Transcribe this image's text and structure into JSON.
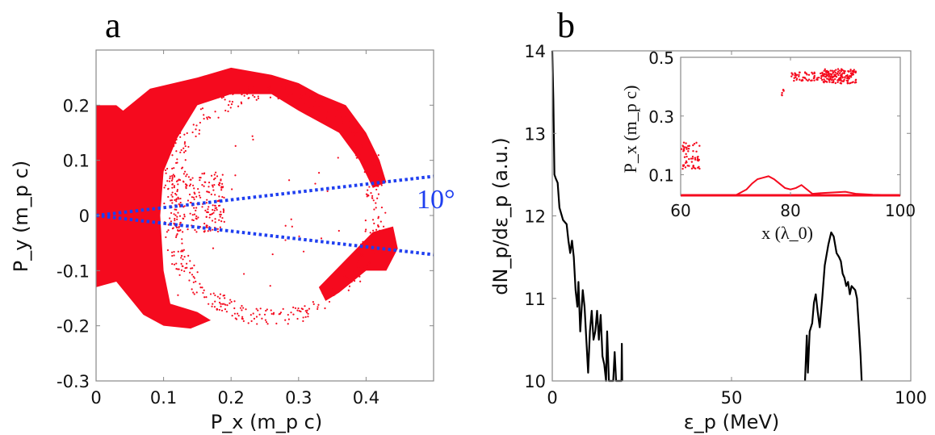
{
  "chart_data": [
    {
      "type": "scatter",
      "panel_label": "a",
      "xlabel": "P_x (m_p c)",
      "ylabel": "P_y (m_p c)",
      "xlim": [
        0,
        0.5
      ],
      "ylim": [
        -0.3,
        0.3
      ],
      "xticks": [
        "0",
        "0.1",
        "0.2",
        "0.3",
        "0.4"
      ],
      "yticks": [
        "0.2",
        "0.1",
        "0",
        "-0.1",
        "-0.2",
        "-0.3"
      ],
      "xtick_values": [
        0,
        0.1,
        0.2,
        0.3,
        0.4
      ],
      "ytick_values": [
        0.2,
        0.1,
        0,
        -0.1,
        -0.2,
        -0.3
      ],
      "point_color": "#f50a1e",
      "dense_regions": [
        {
          "points": [
            [
              0,
              0.2
            ],
            [
              0.03,
              0.2
            ],
            [
              0.04,
              0.19
            ],
            [
              0.08,
              0.23
            ],
            [
              0.15,
              0.25
            ],
            [
              0.2,
              0.268
            ],
            [
              0.26,
              0.255
            ],
            [
              0.3,
              0.24
            ],
            [
              0.33,
              0.22
            ],
            [
              0.37,
              0.2
            ],
            [
              0.4,
              0.15
            ],
            [
              0.42,
              0.1
            ],
            [
              0.43,
              0.06
            ],
            [
              0.41,
              0.05
            ],
            [
              0.39,
              0.1
            ],
            [
              0.36,
              0.15
            ],
            [
              0.3,
              0.19
            ],
            [
              0.26,
              0.22
            ],
            [
              0.2,
              0.22
            ],
            [
              0.15,
              0.2
            ],
            [
              0.12,
              0.14
            ],
            [
              0.1,
              0.08
            ],
            [
              0.095,
              0.0
            ],
            [
              0.1,
              -0.1
            ],
            [
              0.11,
              -0.16
            ],
            [
              0.15,
              -0.175
            ],
            [
              0.17,
              -0.19
            ],
            [
              0.14,
              -0.205
            ],
            [
              0.1,
              -0.2
            ],
            [
              0.07,
              -0.18
            ],
            [
              0.03,
              -0.12
            ],
            [
              0,
              -0.13
            ]
          ]
        },
        {
          "points": [
            [
              0.33,
              -0.13
            ],
            [
              0.37,
              -0.08
            ],
            [
              0.41,
              -0.03
            ],
            [
              0.44,
              -0.02
            ],
            [
              0.447,
              -0.06
            ],
            [
              0.43,
              -0.1
            ],
            [
              0.4,
              -0.1
            ],
            [
              0.36,
              -0.14
            ],
            [
              0.34,
              -0.155
            ]
          ]
        }
      ],
      "sparse_region": {
        "center": [
          0.26,
          0.02
        ],
        "radius_x": [
          0.14,
          0.17
        ],
        "radius_y": [
          0.19,
          0.22
        ]
      },
      "central_cluster": {
        "x": [
          0.11,
          0.19
        ],
        "y": [
          -0.03,
          0.08
        ]
      },
      "guide_lines": {
        "color": "#1f3ff0",
        "lines": [
          [
            [
              0,
              0
            ],
            [
              0.5,
              0.071
            ]
          ],
          [
            [
              0,
              0
            ],
            [
              0.5,
              -0.071
            ]
          ]
        ],
        "annotation": "10°"
      }
    },
    {
      "type": "line",
      "panel_label": "b",
      "xlabel": "ε_p (MeV)",
      "ylabel": "dN_p/dε_p (a.u.)",
      "xlim": [
        0,
        100
      ],
      "ylim": [
        10,
        14
      ],
      "xticks": [
        "0",
        "50",
        "100"
      ],
      "yticks": [
        "14",
        "13",
        "12",
        "11",
        "10"
      ],
      "xtick_values": [
        0,
        50,
        100
      ],
      "ytick_values": [
        14,
        13,
        12,
        11,
        10
      ],
      "line_color": "#000000",
      "segments": [
        [
          [
            0,
            14
          ],
          [
            0.3,
            13.4
          ],
          [
            0.6,
            12.5
          ],
          [
            1,
            12.45
          ],
          [
            1.5,
            12.4
          ],
          [
            2,
            12.1
          ],
          [
            3,
            11.95
          ],
          [
            4,
            11.9
          ],
          [
            4.5,
            11.7
          ],
          [
            5,
            11.55
          ],
          [
            5.5,
            11.7
          ],
          [
            6,
            11.5
          ],
          [
            6.5,
            11.1
          ],
          [
            7,
            10.9
          ],
          [
            7.3,
            11.2
          ],
          [
            7.8,
            10.6
          ],
          [
            8.5,
            11.1
          ],
          [
            9,
            10.9
          ],
          [
            9.5,
            10.5
          ],
          [
            10,
            10.1
          ],
          [
            10.5,
            10.6
          ],
          [
            11,
            10.85
          ],
          [
            11.5,
            10.5
          ],
          [
            12,
            10.6
          ],
          [
            12.5,
            10.85
          ],
          [
            13,
            10.5
          ],
          [
            13.5,
            10.8
          ],
          [
            14,
            10.3
          ],
          [
            14.5,
            10.2
          ],
          [
            15,
            10.0
          ],
          [
            15.3,
            10.6
          ],
          [
            15.8,
            10.0
          ],
          [
            17,
            10.0
          ],
          [
            17.4,
            10.35
          ],
          [
            17.8,
            10.0
          ],
          [
            19.3,
            10.0
          ],
          [
            19.4,
            10.45
          ],
          [
            19.5,
            10.0
          ]
        ],
        [
          [
            70.5,
            10
          ],
          [
            71,
            10.55
          ],
          [
            71.3,
            10.1
          ],
          [
            71.8,
            10.6
          ],
          [
            72.5,
            10.7
          ],
          [
            73,
            10.95
          ],
          [
            73.5,
            11.05
          ],
          [
            74,
            10.85
          ],
          [
            74.6,
            10.65
          ],
          [
            75.3,
            11.0
          ],
          [
            76,
            11.4
          ],
          [
            77,
            11.65
          ],
          [
            77.8,
            11.8
          ],
          [
            78.5,
            11.75
          ],
          [
            79.3,
            11.55
          ],
          [
            80,
            11.5
          ],
          [
            80.5,
            11.45
          ],
          [
            81,
            11.3
          ],
          [
            81.5,
            11.25
          ],
          [
            82,
            11.15
          ],
          [
            82.5,
            11.2
          ],
          [
            83,
            11.05
          ],
          [
            83.5,
            11.15
          ],
          [
            84.5,
            11.1
          ],
          [
            85,
            11.0
          ],
          [
            85.6,
            10.6
          ],
          [
            86,
            10.3
          ],
          [
            86.3,
            10
          ]
        ]
      ],
      "inset": {
        "type": "scatter",
        "xlabel": "x (λ_0)",
        "ylabel": "P_x (m_p c)",
        "xlim": [
          60,
          100
        ],
        "ylim": [
          0.03,
          0.5
        ],
        "xticks": [
          "60",
          "80",
          "100"
        ],
        "yticks": [
          "0.5",
          "0.3",
          "0.1"
        ],
        "xtick_values": [
          60,
          80,
          100
        ],
        "ytick_values": [
          0.5,
          0.3,
          0.1
        ],
        "color": "#f50a1e",
        "baseline": [
          [
            60,
            0.03
          ],
          [
            100,
            0.03
          ]
        ],
        "curve": [
          [
            70,
            0.03
          ],
          [
            71,
            0.04
          ],
          [
            72,
            0.05
          ],
          [
            73,
            0.07
          ],
          [
            74,
            0.085
          ],
          [
            75,
            0.09
          ],
          [
            76,
            0.095
          ],
          [
            77,
            0.085
          ],
          [
            78,
            0.07
          ],
          [
            79,
            0.055
          ],
          [
            80,
            0.05
          ],
          [
            81,
            0.055
          ],
          [
            82,
            0.065
          ],
          [
            83,
            0.05
          ],
          [
            84,
            0.035
          ],
          [
            86,
            0.038
          ],
          [
            88,
            0.04
          ],
          [
            90,
            0.042
          ],
          [
            92,
            0.035
          ],
          [
            95,
            0.032
          ],
          [
            100,
            0.03
          ]
        ],
        "clusters": [
          {
            "x": [
              60,
              63.5
            ],
            "y": [
              0.12,
              0.21
            ]
          },
          {
            "x": [
              78.3,
              78.8
            ],
            "y": [
              0.37,
              0.39
            ]
          },
          {
            "x": [
              80,
              86
            ],
            "y": [
              0.42,
              0.45
            ]
          },
          {
            "x": [
              86,
              92
            ],
            "y": [
              0.41,
              0.46
            ]
          }
        ]
      }
    }
  ]
}
